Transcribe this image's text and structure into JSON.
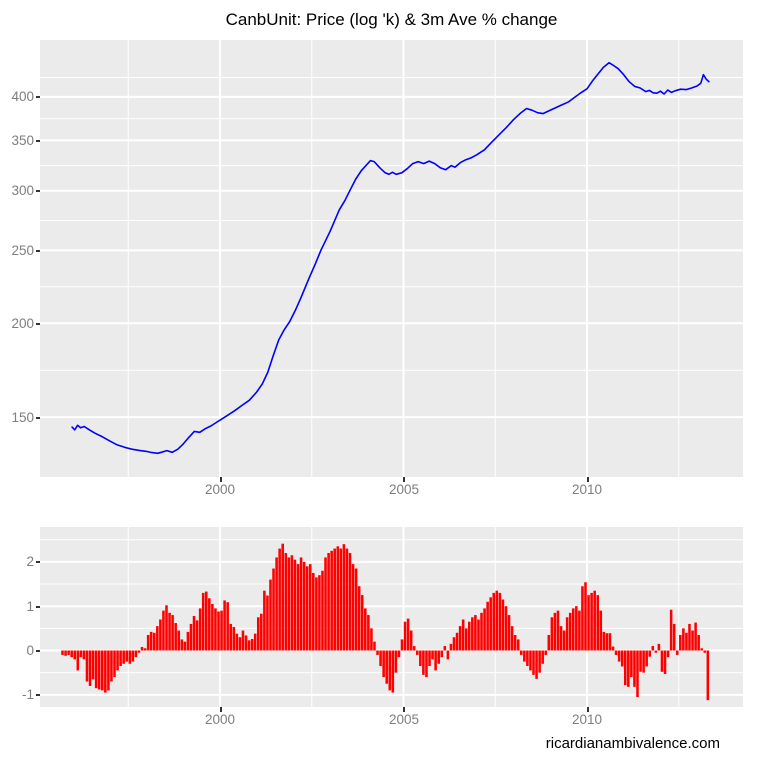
{
  "title": "CanbUnit: Price (log 'k) & 3m Ave % change",
  "attribution": "ricardianambivalence.com",
  "colors": {
    "panel_background": "#EBEBEB",
    "gridline": "#FFFFFF",
    "line": "#0000FF",
    "bar": "#FF0000",
    "axis_text": "#7e7e7e",
    "tick_mark": "#333333",
    "page_background": "#FFFFFF"
  },
  "chart_data": [
    {
      "type": "line",
      "title": "CanbUnit: Price (log 'k) & 3m Ave % change",
      "xlabel": "",
      "ylabel": "",
      "y_scale": "log10",
      "grid": true,
      "legend": "none",
      "x_range": [
        1995.095,
        2014.25
      ],
      "y_range": [
        124.9,
        476.0
      ],
      "y_ticks": [
        150,
        200,
        250,
        300,
        350,
        400
      ],
      "y_minor_ticks": [
        173.2,
        223.6,
        273.9,
        324.0,
        374.2,
        424.3
      ],
      "x_ticks": [
        2000,
        2005,
        2010
      ],
      "x_minor_ticks": [
        1997.5,
        2002.5,
        2007.5,
        2012.5
      ],
      "series": [
        {
          "name": "CanbUnit price (log 'k)",
          "points": [
            [
              1995.97,
              145.5
            ],
            [
              1996.04,
              144.3
            ],
            [
              1996.12,
              146.3
            ],
            [
              1996.2,
              145.2
            ],
            [
              1996.3,
              145.8
            ],
            [
              1996.45,
              144.2
            ],
            [
              1996.6,
              142.8
            ],
            [
              1996.8,
              141.2
            ],
            [
              1997.0,
              139.4
            ],
            [
              1997.2,
              137.8
            ],
            [
              1997.4,
              136.8
            ],
            [
              1997.6,
              136.0
            ],
            [
              1997.8,
              135.5
            ],
            [
              1998.0,
              135.1
            ],
            [
              1998.15,
              134.6
            ],
            [
              1998.3,
              134.3
            ],
            [
              1998.45,
              134.9
            ],
            [
              1998.55,
              135.4
            ],
            [
              1998.7,
              134.7
            ],
            [
              1998.85,
              136.0
            ],
            [
              1999.0,
              138.2
            ],
            [
              1999.15,
              141.0
            ],
            [
              1999.3,
              143.6
            ],
            [
              1999.45,
              143.2
            ],
            [
              1999.6,
              144.8
            ],
            [
              1999.75,
              146.0
            ],
            [
              1999.9,
              147.6
            ],
            [
              2000.05,
              149.2
            ],
            [
              2000.2,
              150.8
            ],
            [
              2000.4,
              153.0
            ],
            [
              2000.6,
              155.5
            ],
            [
              2000.8,
              158.0
            ],
            [
              2001.0,
              162.0
            ],
            [
              2001.15,
              166.0
            ],
            [
              2001.3,
              172.0
            ],
            [
              2001.45,
              181.0
            ],
            [
              2001.6,
              190.0
            ],
            [
              2001.75,
              196.0
            ],
            [
              2001.9,
              201.0
            ],
            [
              2002.05,
              208.0
            ],
            [
              2002.2,
              216.0
            ],
            [
              2002.4,
              228.0
            ],
            [
              2002.6,
              240.0
            ],
            [
              2002.75,
              250.0
            ],
            [
              2003.0,
              265.0
            ],
            [
              2003.25,
              283.0
            ],
            [
              2003.4,
              291.0
            ],
            [
              2003.55,
              301.0
            ],
            [
              2003.7,
              311.0
            ],
            [
              2003.85,
              319.0
            ],
            [
              2004.0,
              325.0
            ],
            [
              2004.1,
              329.0
            ],
            [
              2004.2,
              328.0
            ],
            [
              2004.35,
              322.0
            ],
            [
              2004.5,
              317.0
            ],
            [
              2004.6,
              315.5
            ],
            [
              2004.7,
              317.5
            ],
            [
              2004.8,
              315.5
            ],
            [
              2004.95,
              317.0
            ],
            [
              2005.1,
              321.0
            ],
            [
              2005.25,
              326.0
            ],
            [
              2005.4,
              328.0
            ],
            [
              2005.55,
              326.0
            ],
            [
              2005.7,
              328.5
            ],
            [
              2005.85,
              326.0
            ],
            [
              2006.0,
              322.0
            ],
            [
              2006.15,
              320.0
            ],
            [
              2006.3,
              324.0
            ],
            [
              2006.4,
              322.5
            ],
            [
              2006.55,
              327.0
            ],
            [
              2006.7,
              330.0
            ],
            [
              2006.85,
              332.0
            ],
            [
              2007.0,
              335.0
            ],
            [
              2007.2,
              340.0
            ],
            [
              2007.4,
              348.0
            ],
            [
              2007.6,
              356.0
            ],
            [
              2007.8,
              364.0
            ],
            [
              2008.0,
              373.0
            ],
            [
              2008.2,
              381.0
            ],
            [
              2008.35,
              386.0
            ],
            [
              2008.5,
              384.0
            ],
            [
              2008.65,
              381.0
            ],
            [
              2008.8,
              380.0
            ],
            [
              2008.95,
              383.0
            ],
            [
              2009.1,
              386.0
            ],
            [
              2009.3,
              390.0
            ],
            [
              2009.5,
              394.0
            ],
            [
              2009.65,
              399.0
            ],
            [
              2009.8,
              404.0
            ],
            [
              2010.0,
              410.0
            ],
            [
              2010.15,
              420.0
            ],
            [
              2010.3,
              429.0
            ],
            [
              2010.45,
              438.0
            ],
            [
              2010.6,
              444.0
            ],
            [
              2010.7,
              441.0
            ],
            [
              2010.85,
              436.0
            ],
            [
              2011.0,
              428.0
            ],
            [
              2011.15,
              419.0
            ],
            [
              2011.3,
              413.0
            ],
            [
              2011.45,
              411.0
            ],
            [
              2011.6,
              406.5
            ],
            [
              2011.7,
              408.0
            ],
            [
              2011.8,
              405.0
            ],
            [
              2011.9,
              404.5
            ],
            [
              2012.0,
              407.0
            ],
            [
              2012.1,
              403.5
            ],
            [
              2012.2,
              408.5
            ],
            [
              2012.3,
              405.5
            ],
            [
              2012.4,
              407.5
            ],
            [
              2012.55,
              409.5
            ],
            [
              2012.7,
              409.0
            ],
            [
              2012.85,
              411.0
            ],
            [
              2013.0,
              413.5
            ],
            [
              2013.1,
              417.0
            ],
            [
              2013.17,
              428.0
            ],
            [
              2013.25,
              422.0
            ],
            [
              2013.32,
              419.0
            ]
          ]
        }
      ]
    },
    {
      "type": "bar",
      "name": "3m Ave % change",
      "xlabel": "",
      "ylabel": "",
      "grid": true,
      "legend": "none",
      "x_range": [
        1995.095,
        2014.25
      ],
      "y_range": [
        -1.275,
        2.787
      ],
      "y_ticks": [
        -1,
        0,
        1,
        2
      ],
      "y_minor_ticks": [
        -0.5,
        0.5,
        1.5,
        2.5
      ],
      "x_ticks": [
        2000,
        2005,
        2010
      ],
      "x_minor_ticks": [
        1997.5,
        2002.5,
        2007.5,
        2012.5
      ],
      "start_year": 1995,
      "start_month": 9,
      "frequency": "monthly",
      "values": [
        -0.1,
        -0.12,
        -0.1,
        -0.15,
        -0.2,
        -0.45,
        -0.15,
        -0.2,
        -0.7,
        -0.8,
        -0.65,
        -0.85,
        -0.88,
        -0.9,
        -0.95,
        -0.9,
        -0.7,
        -0.6,
        -0.45,
        -0.35,
        -0.3,
        -0.25,
        -0.3,
        -0.25,
        -0.15,
        -0.05,
        0.08,
        0.05,
        0.35,
        0.42,
        0.4,
        0.55,
        0.7,
        0.9,
        1.02,
        0.85,
        0.8,
        0.62,
        0.45,
        0.25,
        0.2,
        0.42,
        0.6,
        0.78,
        0.68,
        0.95,
        1.3,
        1.33,
        1.18,
        1.05,
        0.95,
        0.88,
        0.9,
        1.13,
        1.09,
        0.6,
        0.53,
        0.38,
        0.3,
        0.45,
        0.34,
        0.23,
        0.26,
        0.38,
        0.75,
        0.83,
        1.35,
        1.24,
        1.6,
        1.85,
        2.1,
        2.3,
        2.41,
        2.2,
        2.1,
        2.15,
        2.05,
        1.95,
        2.1,
        2.0,
        1.9,
        1.95,
        1.75,
        1.65,
        1.7,
        1.8,
        2.1,
        2.2,
        2.25,
        2.3,
        2.35,
        2.3,
        2.4,
        2.3,
        2.2,
        1.95,
        1.85,
        1.45,
        1.25,
        0.95,
        0.8,
        0.5,
        0.2,
        -0.1,
        -0.35,
        -0.6,
        -0.75,
        -0.9,
        -0.95,
        -0.5,
        -0.15,
        0.25,
        0.65,
        0.72,
        0.45,
        0.1,
        -0.1,
        -0.35,
        -0.55,
        -0.6,
        -0.35,
        -0.2,
        -0.45,
        -0.3,
        -0.15,
        0.1,
        -0.2,
        0.15,
        0.3,
        0.4,
        0.55,
        0.7,
        0.5,
        0.65,
        0.75,
        0.8,
        0.7,
        0.85,
        0.95,
        1.1,
        1.2,
        1.3,
        1.35,
        1.3,
        1.15,
        1.0,
        0.8,
        0.55,
        0.35,
        0.25,
        -0.1,
        -0.25,
        -0.35,
        -0.45,
        -0.55,
        -0.64,
        -0.5,
        -0.3,
        -0.1,
        0.35,
        0.75,
        0.85,
        0.9,
        0.55,
        0.45,
        0.75,
        0.85,
        0.95,
        1.0,
        0.9,
        1.45,
        1.54,
        1.25,
        1.3,
        1.35,
        1.25,
        0.9,
        0.42,
        0.39,
        0.39,
        0.09,
        -0.1,
        -0.25,
        -0.36,
        -0.78,
        -0.82,
        -0.6,
        -0.82,
        -1.05,
        -0.48,
        -0.5,
        -0.36,
        -0.14,
        0.1,
        -0.05,
        0.15,
        -0.48,
        -0.53,
        -0.15,
        0.92,
        0.6,
        -0.1,
        0.35,
        0.5,
        0.4,
        0.6,
        0.45,
        0.63,
        0.35,
        0.05,
        -0.05,
        -1.12
      ]
    }
  ],
  "axis_labels": {
    "top_y": [
      "400",
      "350",
      "300",
      "250",
      "200",
      "150"
    ],
    "bottom_y": [
      "2",
      "1",
      "0",
      "-1"
    ],
    "x": [
      "2000",
      "2005",
      "2010"
    ]
  }
}
